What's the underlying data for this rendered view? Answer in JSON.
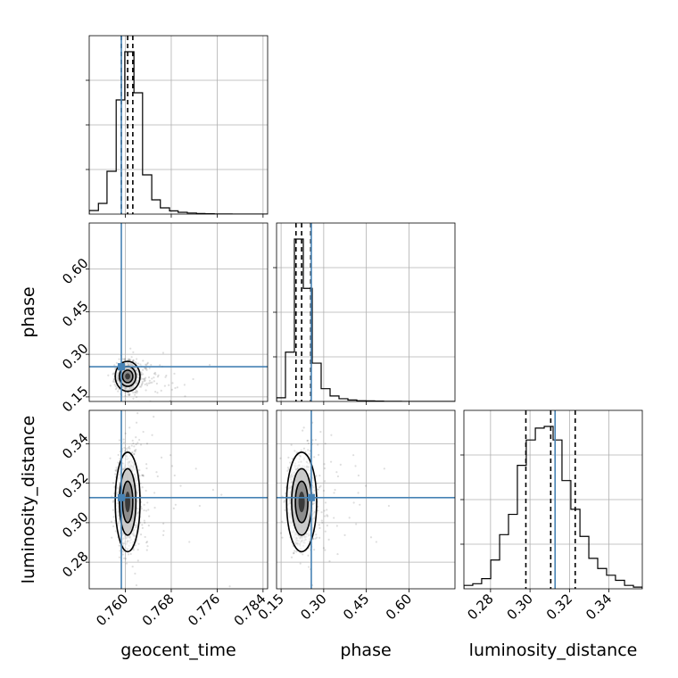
{
  "chart_data": {
    "type": "corner",
    "parameters": [
      "geocent_time",
      "phase",
      "luminosity_distance"
    ],
    "axis_labels": {
      "x": [
        "geocent_time",
        "phase",
        "luminosity_distance"
      ],
      "y": [
        "",
        "phase",
        "luminosity_distance"
      ]
    },
    "ranges": {
      "geocent_time": [
        0.7537,
        0.7848
      ],
      "phase": [
        0.134,
        0.762
      ],
      "luminosity_distance": [
        0.2665,
        0.3569
      ]
    },
    "ticks": {
      "geocent_time": [
        0.76,
        0.768,
        0.776,
        0.784
      ],
      "phase": [
        0.15,
        0.3,
        0.45,
        0.6
      ],
      "luminosity_distance": [
        0.28,
        0.3,
        0.32,
        0.34
      ]
    },
    "tick_labels": {
      "geocent_time": [
        "0.760",
        "0.768",
        "0.776",
        "0.784"
      ],
      "phase": [
        "0.15",
        "0.30",
        "0.45",
        "0.60"
      ],
      "luminosity_distance": [
        "0.28",
        "0.30",
        "0.32",
        "0.34"
      ]
    },
    "truths": {
      "geocent_time": 0.7593,
      "phase": 0.2563,
      "luminosity_distance": 0.3127
    },
    "quantiles": {
      "geocent_time": [
        0.7593,
        0.7604,
        0.7613
      ],
      "phase": [
        0.2024,
        0.2223,
        0.2544
      ],
      "luminosity_distance": [
        0.2979,
        0.3105,
        0.3229
      ]
    },
    "histograms": {
      "geocent_time": {
        "edges": [
          0.7537,
          0.7553,
          0.7568,
          0.7584,
          0.7599,
          0.7615,
          0.763,
          0.7646,
          0.7661,
          0.7677,
          0.7692,
          0.7708,
          0.7724,
          0.7739,
          0.7755,
          0.777,
          0.7786,
          0.7801,
          0.7817,
          0.7832,
          0.7848
        ],
        "counts": [
          0.02,
          0.06,
          0.24,
          0.64,
          0.91,
          0.68,
          0.22,
          0.08,
          0.035,
          0.018,
          0.01,
          0.006,
          0.003,
          0.002,
          0.001,
          0.001,
          0.0,
          0.0,
          0.0,
          0.0
        ]
      },
      "phase": {
        "edges": [
          0.134,
          0.1654,
          0.1968,
          0.2282,
          0.2596,
          0.291,
          0.3224,
          0.3538,
          0.3852,
          0.4166,
          0.448,
          0.4794,
          0.5108,
          0.5422,
          0.5736,
          0.605,
          0.6364,
          0.6678,
          0.6992,
          0.7306,
          0.762
        ],
        "counts": [
          0.02,
          0.27,
          0.89,
          0.62,
          0.21,
          0.07,
          0.03,
          0.015,
          0.008,
          0.004,
          0.003,
          0.002,
          0.001,
          0.001,
          0.0,
          0.0,
          0.0,
          0.0,
          0.0,
          0.0
        ]
      },
      "luminosity_distance": {
        "edges": [
          0.2665,
          0.271,
          0.2755,
          0.2801,
          0.2846,
          0.2891,
          0.2936,
          0.2981,
          0.3027,
          0.3072,
          0.3117,
          0.3162,
          0.3207,
          0.3253,
          0.3298,
          0.3343,
          0.3388,
          0.3433,
          0.3479,
          0.3524,
          0.3569
        ],
        "counts": [
          0.02,
          0.03,
          0.06,
          0.17,
          0.32,
          0.44,
          0.73,
          0.88,
          0.95,
          0.96,
          0.88,
          0.64,
          0.47,
          0.31,
          0.18,
          0.12,
          0.08,
          0.05,
          0.02,
          0.01
        ]
      }
    },
    "grid": true,
    "colors": {
      "truth": "#4682b4",
      "line": "#000000",
      "grid": "#b0b0b0"
    }
  }
}
